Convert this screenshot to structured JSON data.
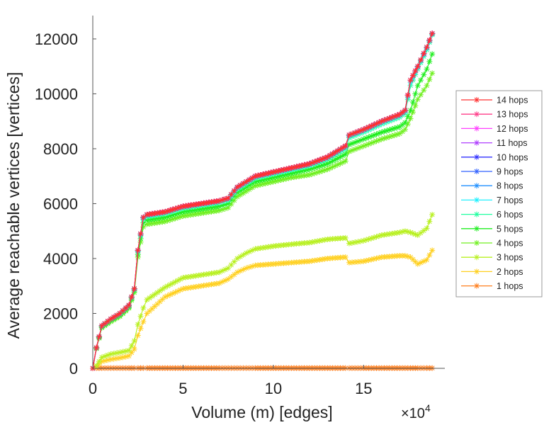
{
  "chart_data": {
    "type": "line",
    "title": "",
    "xlabel": "Volume (m) [edges]",
    "x_multiplier_label": "×10",
    "x_multiplier_exp": "4",
    "ylabel": "Average reachable vertices [vertices]",
    "xlim": [
      0,
      19.5
    ],
    "ylim": [
      0,
      12850
    ],
    "xticks": [
      0,
      5,
      10,
      15
    ],
    "yticks": [
      0,
      2000,
      4000,
      6000,
      8000,
      10000,
      12000
    ],
    "legend_position": "right",
    "x": [
      0.2,
      0.5,
      1,
      1.5,
      2,
      2.3,
      2.5,
      2.8,
      3,
      4,
      5,
      6,
      7,
      7.5,
      8,
      8.5,
      9,
      10,
      11,
      12,
      13,
      14,
      14.2,
      15,
      16,
      17,
      17.3,
      17.6,
      18,
      18.5,
      18.8
    ],
    "series": [
      {
        "name": "14 hops",
        "color": "#ff3030",
        "values": [
          750,
          1550,
          1800,
          2000,
          2300,
          2900,
          4300,
          5500,
          5600,
          5700,
          5900,
          6000,
          6100,
          6200,
          6600,
          6800,
          7000,
          7150,
          7300,
          7450,
          7700,
          8100,
          8500,
          8700,
          9000,
          9250,
          9400,
          10500,
          11000,
          11700,
          12200
        ]
      },
      {
        "name": "13 hops",
        "color": "#ff3d8a",
        "values": [
          750,
          1550,
          1800,
          2000,
          2300,
          2900,
          4300,
          5500,
          5600,
          5700,
          5900,
          6000,
          6100,
          6200,
          6600,
          6800,
          7000,
          7150,
          7300,
          7450,
          7700,
          8100,
          8500,
          8700,
          9000,
          9250,
          9400,
          10500,
          11000,
          11700,
          12200
        ]
      },
      {
        "name": "12 hops",
        "color": "#ff40ff",
        "values": [
          750,
          1550,
          1800,
          2000,
          2300,
          2900,
          4300,
          5500,
          5600,
          5700,
          5900,
          6000,
          6100,
          6200,
          6600,
          6800,
          7000,
          7150,
          7300,
          7450,
          7700,
          8100,
          8500,
          8700,
          9000,
          9250,
          9400,
          10500,
          11000,
          11700,
          12200
        ]
      },
      {
        "name": "11 hops",
        "color": "#b040ff",
        "values": [
          750,
          1550,
          1800,
          2000,
          2300,
          2900,
          4300,
          5500,
          5600,
          5700,
          5900,
          6000,
          6100,
          6200,
          6600,
          6800,
          7000,
          7150,
          7300,
          7450,
          7700,
          8100,
          8500,
          8700,
          9000,
          9250,
          9400,
          10500,
          11000,
          11700,
          12200
        ]
      },
      {
        "name": "10 hops",
        "color": "#3030ff",
        "values": [
          750,
          1550,
          1800,
          2000,
          2300,
          2900,
          4300,
          5500,
          5600,
          5700,
          5900,
          6000,
          6100,
          6200,
          6600,
          6800,
          7000,
          7150,
          7300,
          7450,
          7700,
          8100,
          8500,
          8700,
          9000,
          9250,
          9400,
          10500,
          11000,
          11700,
          12200
        ]
      },
      {
        "name": "9 hops",
        "color": "#3060ff",
        "values": [
          750,
          1550,
          1800,
          2000,
          2300,
          2900,
          4300,
          5500,
          5600,
          5700,
          5900,
          6000,
          6100,
          6200,
          6600,
          6800,
          7000,
          7150,
          7300,
          7450,
          7700,
          8100,
          8500,
          8700,
          9000,
          9250,
          9400,
          10500,
          11000,
          11700,
          12200
        ]
      },
      {
        "name": "8 hops",
        "color": "#2090ff",
        "values": [
          750,
          1550,
          1800,
          2000,
          2300,
          2900,
          4300,
          5500,
          5600,
          5700,
          5900,
          6000,
          6100,
          6200,
          6600,
          6800,
          7000,
          7150,
          7300,
          7450,
          7700,
          8100,
          8500,
          8700,
          9000,
          9250,
          9400,
          10500,
          11000,
          11700,
          12200
        ]
      },
      {
        "name": "7 hops",
        "color": "#20f0ff",
        "values": [
          745,
          1540,
          1790,
          1990,
          2290,
          2890,
          4280,
          5470,
          5570,
          5680,
          5880,
          5980,
          6080,
          6170,
          6570,
          6770,
          6970,
          7120,
          7270,
          7420,
          7670,
          8060,
          8460,
          8660,
          8960,
          9210,
          9360,
          10420,
          10960,
          11660,
          12180
        ]
      },
      {
        "name": "6 hops",
        "color": "#20ffa0",
        "values": [
          740,
          1530,
          1780,
          1970,
          2270,
          2870,
          4250,
          5420,
          5520,
          5630,
          5830,
          5930,
          6030,
          6120,
          6520,
          6720,
          6920,
          7080,
          7230,
          7380,
          7620,
          8000,
          8400,
          8600,
          8900,
          9150,
          9300,
          10300,
          10900,
          11600,
          12150
        ]
      },
      {
        "name": "5 hops",
        "color": "#20ee20",
        "values": [
          730,
          1500,
          1740,
          1930,
          2230,
          2820,
          4150,
          5300,
          5400,
          5500,
          5700,
          5800,
          5900,
          6000,
          6400,
          6600,
          6800,
          6950,
          7100,
          7250,
          7450,
          7800,
          8150,
          8350,
          8600,
          8800,
          8950,
          9400,
          10300,
          10900,
          11450
        ]
      },
      {
        "name": "4 hops",
        "color": "#70f020",
        "values": [
          720,
          1480,
          1700,
          1890,
          2190,
          2760,
          4050,
          5150,
          5250,
          5350,
          5550,
          5650,
          5750,
          5850,
          6250,
          6450,
          6650,
          6800,
          6950,
          7050,
          7250,
          7550,
          7900,
          8100,
          8350,
          8550,
          8700,
          9100,
          9800,
          10300,
          10750
        ]
      },
      {
        "name": "3 hops",
        "color": "#b8f020",
        "values": [
          100,
          400,
          520,
          580,
          650,
          1000,
          1600,
          2200,
          2500,
          2950,
          3300,
          3400,
          3500,
          3650,
          4000,
          4200,
          4350,
          4450,
          4520,
          4580,
          4700,
          4750,
          4550,
          4650,
          4850,
          4950,
          5000,
          4950,
          4850,
          5100,
          5600
        ]
      },
      {
        "name": "2 hops",
        "color": "#ffd020",
        "values": [
          50,
          250,
          330,
          380,
          450,
          700,
          1200,
          1700,
          2000,
          2600,
          2900,
          3000,
          3100,
          3250,
          3500,
          3650,
          3750,
          3800,
          3850,
          3900,
          4000,
          4050,
          3850,
          3900,
          4050,
          4100,
          4100,
          4050,
          3800,
          3950,
          4300
        ]
      },
      {
        "name": "1 hops",
        "color": "#ff8020",
        "values": [
          10,
          10,
          10,
          10,
          10,
          10,
          10,
          10,
          10,
          10,
          10,
          10,
          10,
          10,
          10,
          10,
          10,
          10,
          10,
          10,
          10,
          10,
          10,
          10,
          10,
          10,
          10,
          10,
          10,
          10,
          10
        ]
      }
    ]
  }
}
